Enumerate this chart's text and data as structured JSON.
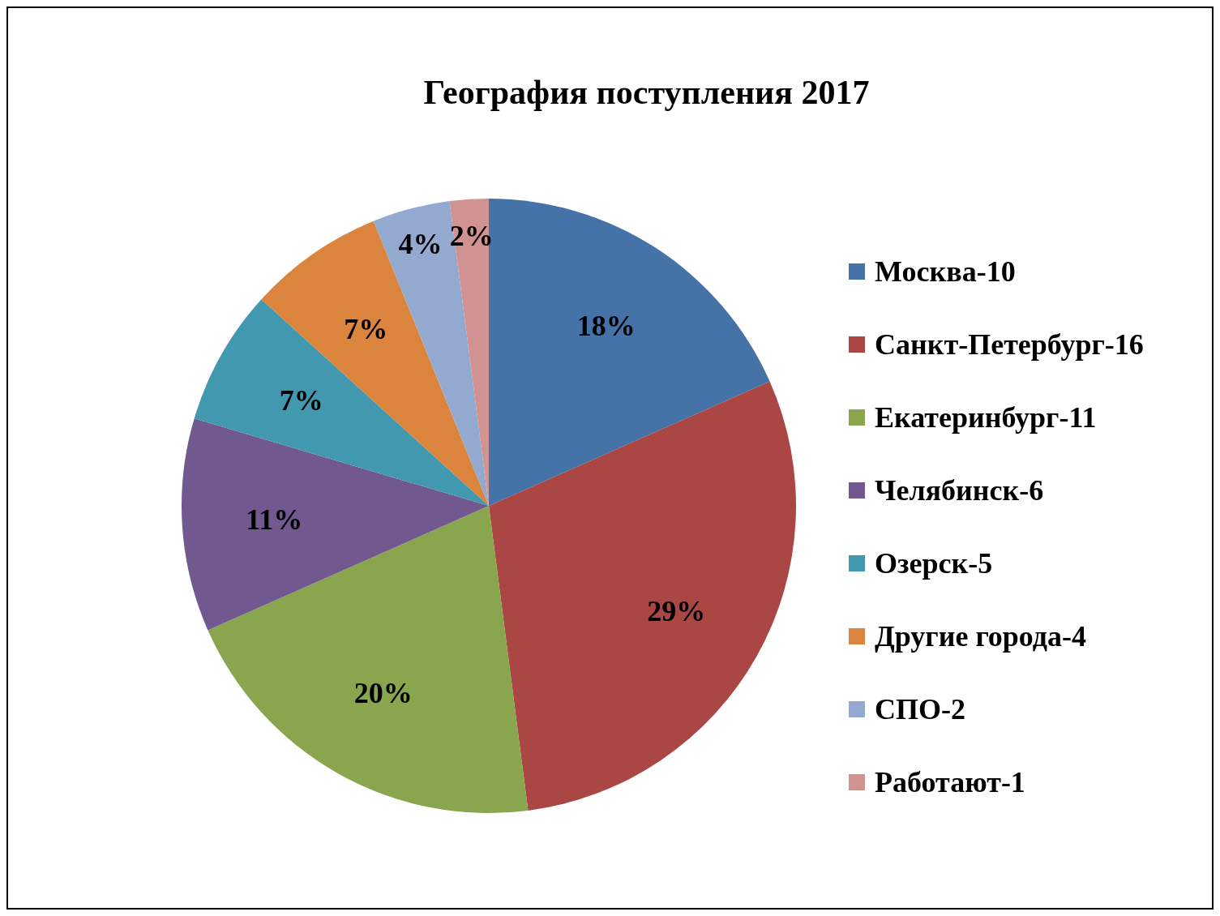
{
  "chart_data": {
    "type": "pie",
    "title": "География поступления 2017",
    "categories": [
      "Москва-10",
      "Санкт-Петербург-16",
      "Екатеринбург-11",
      "Челябинск-6",
      "Озерск-5",
      "Другие города-4",
      "СПО-2",
      "Работают-1"
    ],
    "values": [
      18,
      29,
      20,
      11,
      7,
      7,
      4,
      2
    ],
    "value_labels": [
      "18%",
      "29%",
      "20%",
      "11%",
      "7%",
      "7%",
      "4%",
      "2%"
    ],
    "colors": [
      "#4572a7",
      "#aa4643",
      "#89a54e",
      "#71588f",
      "#4198af",
      "#db843d",
      "#93a9cf",
      "#d19392"
    ],
    "legend": "right"
  }
}
